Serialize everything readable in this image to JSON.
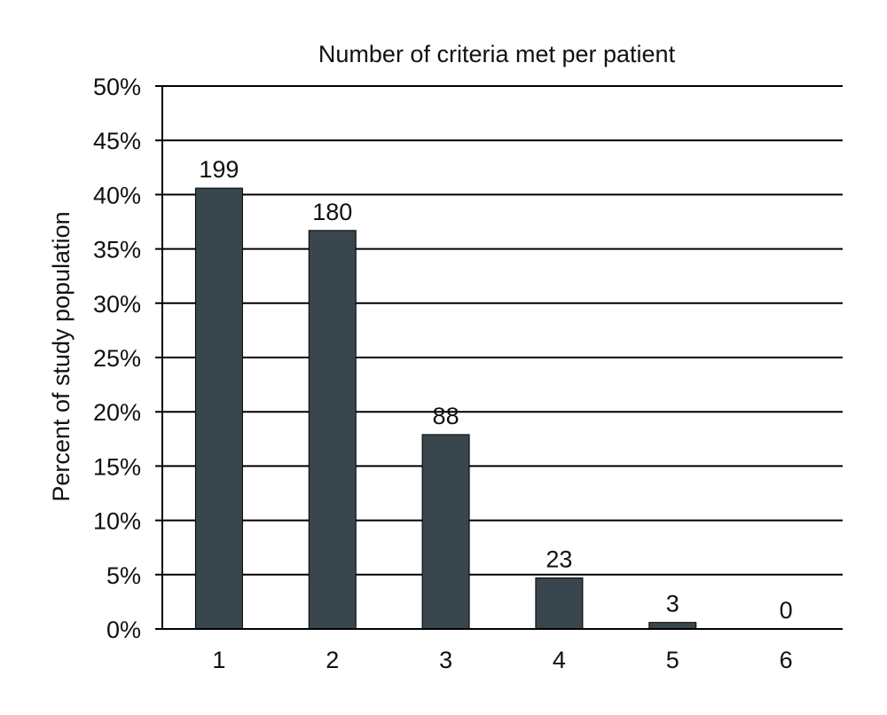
{
  "chart_data": {
    "type": "bar",
    "title": "Number of criteria met per patient",
    "xlabel": "",
    "ylabel": "Percent of study population",
    "categories": [
      "1",
      "2",
      "3",
      "4",
      "5",
      "6"
    ],
    "values": [
      40.6,
      36.7,
      17.9,
      4.7,
      0.6,
      0
    ],
    "data_labels": [
      "199",
      "180",
      "88",
      "23",
      "3",
      "0"
    ],
    "ylim": [
      0,
      50
    ],
    "yticks": [
      0,
      5,
      10,
      15,
      20,
      25,
      30,
      35,
      40,
      45,
      50
    ],
    "ytick_labels": [
      "0%",
      "5%",
      "10%",
      "15%",
      "20%",
      "25%",
      "30%",
      "35%",
      "40%",
      "45%",
      "50%"
    ],
    "grid": true,
    "bar_color": "#3a464d"
  }
}
